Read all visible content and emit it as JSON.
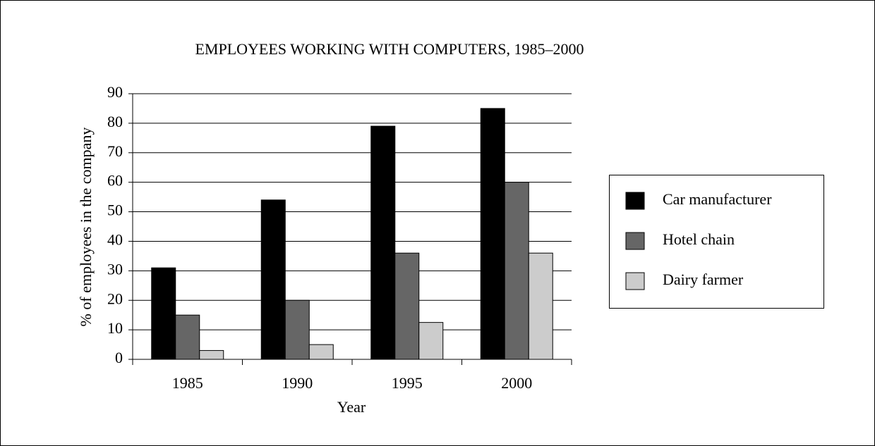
{
  "chart_data": {
    "type": "bar",
    "title": "EMPLOYEES WORKING WITH COMPUTERS, 1985–2000",
    "x_label": "Year",
    "y_label": "% of employees in the company",
    "categories": [
      "1985",
      "1990",
      "1995",
      "2000"
    ],
    "series": [
      {
        "name": "Car manufacturer",
        "color": "#000000",
        "values": [
          31,
          54,
          79,
          85
        ]
      },
      {
        "name": "Hotel chain",
        "color": "#666666",
        "values": [
          15,
          20,
          36,
          60
        ]
      },
      {
        "name": "Dairy farmer",
        "color": "#cccccc",
        "values": [
          3,
          5,
          12.5,
          36
        ]
      }
    ],
    "ylim": [
      0,
      90
    ],
    "yticks": [
      0,
      10,
      20,
      30,
      40,
      50,
      60,
      70,
      80,
      90
    ],
    "grid": true,
    "legend": "right"
  }
}
